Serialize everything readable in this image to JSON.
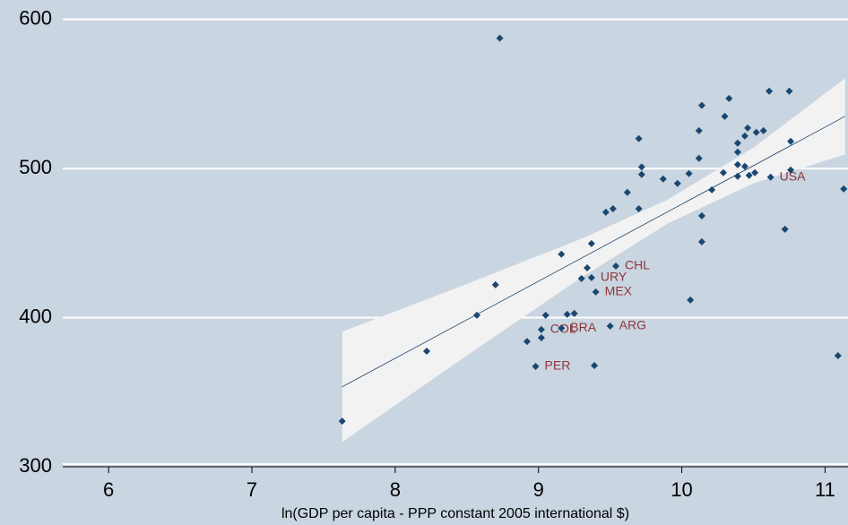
{
  "chart_data": {
    "type": "scatter",
    "x_label": "ln(GDP per capita - PPP constant 2005 international $)",
    "xlim": [
      5.68,
      11.16
    ],
    "xticks": [
      6,
      7,
      8,
      9,
      10,
      11
    ],
    "ylim": [
      300,
      613
    ],
    "yticks": [
      300,
      400,
      500,
      600
    ],
    "grid": true,
    "color": "#1a476f",
    "label_color": "#90353b",
    "x": [
      7.63,
      8.22,
      8.57,
      8.73,
      8.7,
      8.92,
      8.98,
      9.05,
      9.02,
      9.02,
      9.16,
      9.2,
      9.25,
      9.16,
      9.3,
      9.34,
      9.37,
      9.37,
      9.39,
      9.4,
      9.5,
      9.54,
      9.47,
      9.52,
      9.62,
      9.7,
      9.7,
      9.72,
      9.72,
      9.87,
      9.97,
      10.05,
      10.06,
      10.12,
      10.14,
      10.12,
      10.14,
      10.14,
      10.21,
      10.29,
      10.3,
      10.33,
      10.39,
      10.39,
      10.39,
      10.39,
      10.44,
      10.46,
      10.44,
      10.47,
      10.51,
      10.52,
      10.57,
      10.61,
      10.62,
      10.72,
      10.75,
      10.76,
      10.76,
      11.09,
      11.13
    ],
    "values": [
      330.6,
      377.5,
      401.6,
      587.4,
      422,
      384,
      367.3,
      401.6,
      392,
      386.5,
      393,
      402.2,
      402.8,
      442.5,
      426.2,
      433.4,
      426.8,
      449.7,
      367.9,
      417.2,
      394.3,
      434.6,
      470.7,
      473,
      484,
      520,
      473,
      501,
      496,
      493,
      490,
      496.6,
      411.8,
      525.4,
      542.3,
      506.8,
      468.3,
      450.9,
      485.7,
      497.2,
      535,
      547,
      517,
      511,
      502.6,
      494.8,
      521.8,
      527.2,
      501.4,
      495.4,
      497.2,
      524.2,
      525.4,
      551.9,
      494.2,
      459.3,
      551.9,
      518.2,
      499,
      374.5,
      486.3
    ],
    "labels": [
      null,
      null,
      null,
      null,
      null,
      null,
      "PER",
      null,
      "COL",
      null,
      "BRA",
      null,
      null,
      null,
      null,
      null,
      "URY",
      null,
      null,
      "MEX",
      "ARG",
      "CHL",
      null,
      null,
      null,
      null,
      null,
      null,
      null,
      null,
      null,
      null,
      null,
      null,
      null,
      null,
      null,
      null,
      null,
      null,
      null,
      null,
      null,
      null,
      null,
      null,
      null,
      null,
      null,
      null,
      null,
      null,
      null,
      null,
      "USA",
      null,
      null,
      null,
      null,
      null,
      null
    ],
    "fit": {
      "x": [
        7.63,
        11.14
      ],
      "y": [
        353.6,
        535
      ]
    },
    "band": {
      "x": [
        7.63,
        8.5,
        9.3,
        9.9,
        10.5,
        11.14
      ],
      "upper": [
        390.6,
        422.6,
        452.9,
        479,
        514,
        560.5
      ],
      "lower": [
        316.6,
        374.6,
        426.9,
        463,
        490,
        509.5
      ]
    }
  }
}
